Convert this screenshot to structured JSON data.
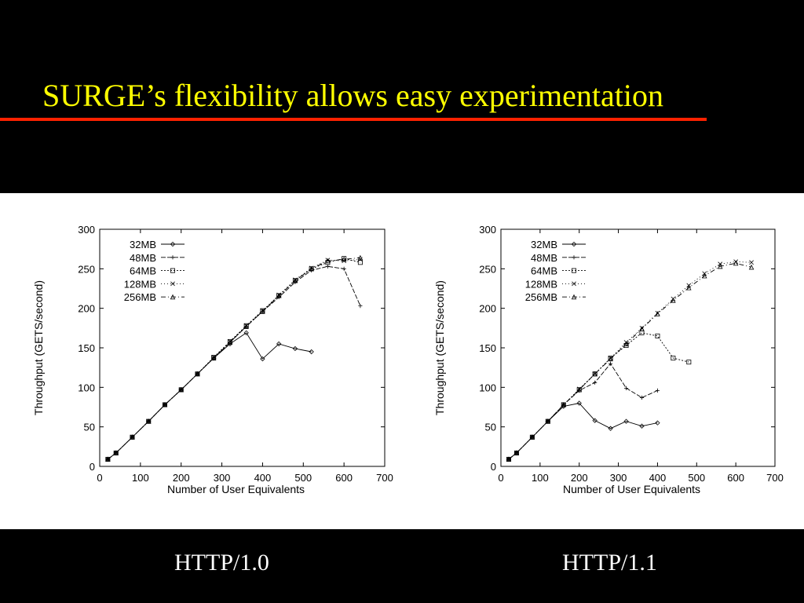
{
  "slide": {
    "title": "SURGE’s flexibility allows easy experimentation",
    "title_color": "#ffff00",
    "rule_color": "#ff2200",
    "captions": [
      "HTTP/1.0",
      "HTTP/1.1"
    ]
  },
  "chart_data": [
    {
      "type": "line",
      "xlabel": "Number of User Equivalents",
      "ylabel": "Throughput (GETS/second)",
      "xlim": [
        0,
        700
      ],
      "ylim": [
        0,
        300
      ],
      "xticks": [
        0,
        100,
        200,
        300,
        400,
        500,
        600,
        700
      ],
      "yticks": [
        0,
        50,
        100,
        150,
        200,
        250,
        300
      ],
      "legend_position": "top-left",
      "grid": false,
      "series": [
        {
          "name": "32MB",
          "marker": "diamond",
          "dash": "",
          "x": [
            20,
            40,
            80,
            120,
            160,
            200,
            240,
            280,
            320,
            360,
            400,
            440,
            480,
            520
          ],
          "y": [
            9,
            17,
            37,
            57,
            78,
            97,
            117,
            137,
            155,
            169,
            136,
            155,
            149,
            145
          ]
        },
        {
          "name": "48MB",
          "marker": "plus",
          "dash": "6,2",
          "x": [
            20,
            40,
            80,
            120,
            160,
            200,
            240,
            280,
            320,
            360,
            400,
            440,
            480,
            520,
            560,
            600,
            640
          ],
          "y": [
            9,
            17,
            37,
            57,
            78,
            97,
            117,
            137,
            157,
            177,
            196,
            214,
            233,
            248,
            253,
            250,
            203
          ]
        },
        {
          "name": "64MB",
          "marker": "square",
          "dash": "2,2",
          "x": [
            20,
            40,
            80,
            120,
            160,
            200,
            240,
            280,
            320,
            360,
            400,
            440,
            480,
            520,
            560,
            600,
            640
          ],
          "y": [
            9,
            17,
            37,
            57,
            78,
            97,
            117,
            138,
            158,
            178,
            197,
            216,
            235,
            250,
            258,
            263,
            258
          ]
        },
        {
          "name": "128MB",
          "marker": "cross",
          "dash": "1,3",
          "x": [
            20,
            40,
            80,
            120,
            160,
            200,
            240,
            280,
            320,
            360,
            400,
            440,
            480,
            520,
            560,
            600,
            640
          ],
          "y": [
            9,
            17,
            37,
            57,
            78,
            97,
            117,
            138,
            158,
            178,
            197,
            217,
            236,
            251,
            261,
            260,
            262
          ]
        },
        {
          "name": "256MB",
          "marker": "triangle",
          "dash": "6,3,1,3",
          "x": [
            20,
            40,
            80,
            120,
            160,
            200,
            240,
            280,
            320,
            360,
            400,
            440,
            480,
            520,
            560,
            600,
            640
          ],
          "y": [
            9,
            17,
            37,
            57,
            78,
            97,
            117,
            137,
            157,
            177,
            196,
            216,
            235,
            250,
            260,
            262,
            264
          ]
        }
      ]
    },
    {
      "type": "line",
      "xlabel": "Number of User Equivalents",
      "ylabel": "Throughput (GETS/second)",
      "xlim": [
        0,
        700
      ],
      "ylim": [
        0,
        300
      ],
      "xticks": [
        0,
        100,
        200,
        300,
        400,
        500,
        600,
        700
      ],
      "yticks": [
        0,
        50,
        100,
        150,
        200,
        250,
        300
      ],
      "legend_position": "top-left",
      "grid": false,
      "series": [
        {
          "name": "32MB",
          "marker": "diamond",
          "dash": "",
          "x": [
            20,
            40,
            80,
            120,
            160,
            200,
            240,
            280,
            320,
            360,
            400
          ],
          "y": [
            9,
            17,
            37,
            57,
            76,
            80,
            58,
            48,
            57,
            51,
            55
          ]
        },
        {
          "name": "48MB",
          "marker": "plus",
          "dash": "6,2",
          "x": [
            20,
            40,
            80,
            120,
            160,
            200,
            240,
            280,
            320,
            360,
            400
          ],
          "y": [
            9,
            17,
            37,
            57,
            78,
            96,
            106,
            130,
            99,
            87,
            96
          ]
        },
        {
          "name": "64MB",
          "marker": "square",
          "dash": "2,2",
          "x": [
            20,
            40,
            80,
            120,
            160,
            200,
            240,
            280,
            320,
            360,
            400,
            440,
            480
          ],
          "y": [
            9,
            17,
            37,
            57,
            78,
            97,
            117,
            137,
            153,
            169,
            165,
            137,
            132
          ]
        },
        {
          "name": "128MB",
          "marker": "cross",
          "dash": "1,3",
          "x": [
            20,
            40,
            80,
            120,
            160,
            200,
            240,
            280,
            320,
            360,
            400,
            440,
            480,
            520,
            560,
            600,
            640
          ],
          "y": [
            9,
            17,
            37,
            57,
            78,
            98,
            117,
            137,
            157,
            175,
            194,
            212,
            229,
            244,
            256,
            259,
            258
          ]
        },
        {
          "name": "256MB",
          "marker": "triangle",
          "dash": "6,3,1,3",
          "x": [
            20,
            40,
            80,
            120,
            160,
            200,
            240,
            280,
            320,
            360,
            400,
            440,
            480,
            520,
            560,
            600,
            640
          ],
          "y": [
            9,
            17,
            37,
            57,
            78,
            97,
            117,
            136,
            155,
            174,
            193,
            210,
            226,
            241,
            253,
            257,
            252
          ]
        }
      ]
    }
  ]
}
